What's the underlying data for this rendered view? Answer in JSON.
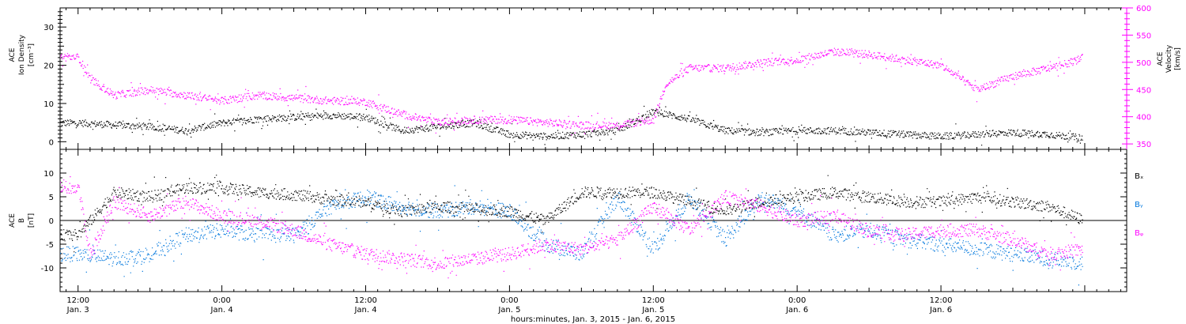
{
  "chart_data": [
    {
      "type": "scatter",
      "panel": "top",
      "ylabel_left": [
        "ACE",
        "Ion Density",
        "[cm⁻³]"
      ],
      "ylabel_right": [
        "ACE",
        "Velocity",
        "[km/s]"
      ],
      "ylim_left": [
        -2,
        35
      ],
      "ylim_right": [
        340,
        600
      ],
      "yticks_left": [
        0,
        10,
        20,
        30
      ],
      "yticks_right": [
        350,
        400,
        450,
        500,
        550,
        600
      ],
      "colors": {
        "density": "#000000",
        "velocity": "#ff00ff"
      },
      "series": [
        {
          "axis": "left",
          "color": "#000000",
          "x": [
            0,
            3,
            6,
            9,
            12,
            15,
            18,
            21,
            24,
            27,
            30,
            33,
            36,
            39,
            42,
            45,
            48,
            51,
            54,
            57,
            60,
            63,
            66,
            69,
            72,
            75,
            78,
            81,
            84
          ],
          "y": [
            5,
            4.5,
            4,
            3,
            5,
            6,
            6.5,
            7,
            6.5,
            3,
            4,
            5,
            2,
            1.5,
            2,
            3,
            8,
            6,
            3,
            2.5,
            3,
            3,
            2.5,
            2,
            1.5,
            2,
            2.5,
            2,
            1
          ]
        },
        {
          "axis": "right",
          "color": "#ff00ff",
          "x": [
            0,
            1,
            3,
            6,
            9,
            12,
            15,
            18,
            21,
            24,
            27,
            30,
            33,
            36,
            39,
            42,
            45,
            48,
            49,
            51,
            54,
            57,
            60,
            63,
            66,
            69,
            72,
            75,
            78,
            80,
            82,
            84
          ],
          "y": [
            510,
            470,
            440,
            450,
            440,
            430,
            440,
            435,
            430,
            428,
            405,
            390,
            395,
            395,
            390,
            385,
            385,
            395,
            460,
            490,
            490,
            500,
            505,
            520,
            515,
            505,
            495,
            450,
            475,
            485,
            495,
            510
          ]
        }
      ]
    },
    {
      "type": "scatter",
      "panel": "bottom",
      "ylabel_left": [
        "ACE",
        "B",
        "[nT]"
      ],
      "ylim": [
        -15,
        15
      ],
      "yticks": [
        -10,
        -5,
        0,
        5,
        10
      ],
      "legend": [
        "Bₓ",
        "Bᵧ",
        "Bᵩ"
      ],
      "legend_colors": [
        "#000000",
        "#0077dd",
        "#ff00ff"
      ],
      "legend_position": "right",
      "series": [
        {
          "color": "#000000",
          "x": [
            0,
            3,
            6,
            9,
            12,
            15,
            18,
            21,
            24,
            27,
            30,
            33,
            36,
            39,
            42,
            45,
            48,
            51,
            54,
            57,
            60,
            63,
            66,
            69,
            72,
            75,
            78,
            81,
            84
          ],
          "y": [
            -3,
            6,
            5,
            7,
            7,
            6,
            5.5,
            4.5,
            4,
            2,
            3,
            2.5,
            2,
            0,
            6,
            6,
            6,
            4,
            2,
            4,
            5,
            6,
            5,
            4,
            4,
            5,
            4,
            3,
            0
          ]
        },
        {
          "color": "#0077dd",
          "x": [
            0,
            3,
            6,
            9,
            12,
            15,
            18,
            21,
            24,
            27,
            30,
            33,
            36,
            39,
            42,
            45,
            48,
            51,
            54,
            57,
            60,
            63,
            66,
            69,
            72,
            75,
            78,
            81,
            84
          ],
          "y": [
            -7,
            -8,
            -7,
            -3,
            -2,
            -3,
            -3,
            3,
            5,
            3,
            2,
            3,
            2,
            -5,
            -7,
            5,
            -6,
            5,
            -4,
            5,
            2,
            -3,
            -2,
            -4,
            -5,
            -6,
            -7,
            -8,
            -9
          ]
        },
        {
          "color": "#ff00ff",
          "x": [
            0,
            1,
            3,
            6,
            9,
            12,
            15,
            18,
            21,
            24,
            27,
            30,
            33,
            36,
            39,
            42,
            45,
            48,
            51,
            54,
            57,
            60,
            63,
            66,
            69,
            72,
            75,
            78,
            81,
            84
          ],
          "y": [
            7,
            -7,
            4,
            1,
            4,
            1,
            0,
            -2,
            -5,
            -7,
            -8,
            -9,
            -8,
            -7,
            -5,
            -6,
            -4,
            3,
            -2,
            5,
            3,
            0,
            1,
            -2,
            -3,
            -2,
            -2,
            -4,
            -7,
            -6
          ]
        }
      ]
    }
  ],
  "x_axis": {
    "xlabel": "hours:minutes, Jan. 3, 2015 - Jan. 6, 2015",
    "ticks": [
      {
        "hour": 0,
        "time": "12:00",
        "date": "Jan. 3"
      },
      {
        "hour": 12,
        "time": "0:00",
        "date": "Jan. 4"
      },
      {
        "hour": 24,
        "time": "12:00",
        "date": "Jan. 4"
      },
      {
        "hour": 36,
        "time": "0:00",
        "date": "Jan. 5"
      },
      {
        "hour": 48,
        "time": "12:00",
        "date": "Jan. 5"
      },
      {
        "hour": 60,
        "time": "0:00",
        "date": "Jan. 6"
      },
      {
        "hour": 72,
        "time": "12:00",
        "date": "Jan. 6"
      }
    ],
    "xlim_hours": [
      -1.5,
      87.5
    ],
    "data_hours": [
      -1.5,
      83.8
    ]
  }
}
